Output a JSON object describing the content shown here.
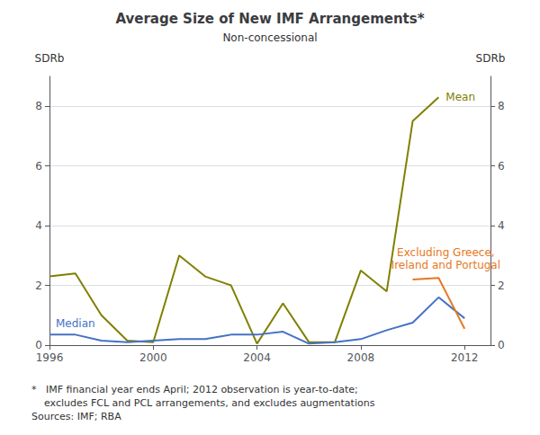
{
  "chart_data": {
    "type": "line",
    "title": "Average Size of New IMF Arrangements*",
    "subtitle": "Non-concessional",
    "y_label": "SDRb",
    "y2_label": "SDRb",
    "xlim": [
      1996,
      2013
    ],
    "xticks": [
      1996,
      2000,
      2004,
      2008,
      2012
    ],
    "ylim": [
      0,
      9
    ],
    "yticks": [
      0,
      2,
      4,
      6,
      8
    ],
    "y2lim": [
      0,
      9
    ],
    "y2ticks": [
      0,
      2,
      4,
      6,
      8
    ],
    "grid": true,
    "series": [
      {
        "name": "Mean",
        "color": "#808000",
        "x": [
          1996,
          1997,
          1998,
          1999,
          2000,
          2001,
          2002,
          2003,
          2004,
          2005,
          2006,
          2007,
          2008,
          2009,
          2010,
          2011
        ],
        "values": [
          2.3,
          2.4,
          1.0,
          0.15,
          0.1,
          3.0,
          2.3,
          2.0,
          0.05,
          1.4,
          0.1,
          0.1,
          2.5,
          1.8,
          7.5,
          8.3
        ]
      },
      {
        "name": "Median",
        "color": "#4472C4",
        "x": [
          1996,
          1997,
          1998,
          1999,
          2000,
          2001,
          2002,
          2003,
          2004,
          2005,
          2006,
          2007,
          2008,
          2009,
          2010,
          2011,
          2012
        ],
        "values": [
          0.35,
          0.35,
          0.15,
          0.1,
          0.15,
          0.2,
          0.2,
          0.35,
          0.35,
          0.45,
          0.05,
          0.1,
          0.2,
          0.5,
          0.75,
          1.6,
          0.9
        ]
      },
      {
        "name": "Excluding Greece,\nIreland and Portugal",
        "color": "#E87722",
        "x": [
          2010,
          2011,
          2012
        ],
        "values": [
          2.2,
          2.25,
          0.55
        ]
      }
    ],
    "footnote": [
      "*   IMF financial year ends April; 2012 observation is year-to-date;",
      "    excludes FCL and PCL arrangements, and excludes augmentations",
      "Sources: IMF; RBA"
    ]
  }
}
